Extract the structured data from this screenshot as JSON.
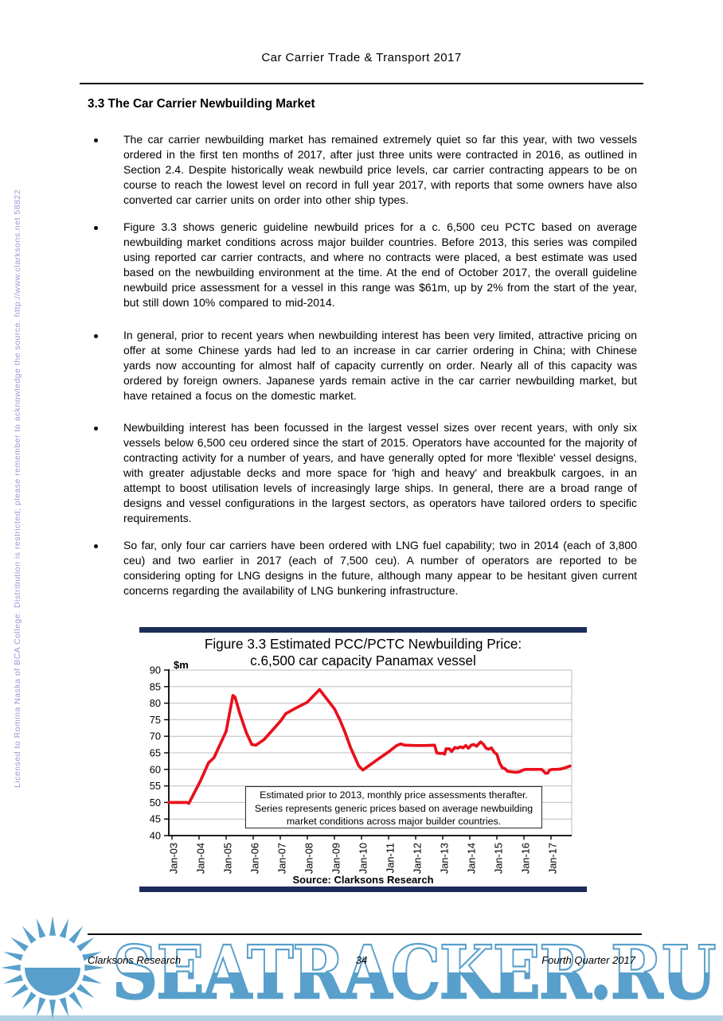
{
  "header": {
    "title": "Car Carrier Trade & Transport 2017"
  },
  "section": {
    "heading": "3.3 The Car Carrier Newbuilding Market"
  },
  "bullets": [
    "The car carrier newbuilding market has remained extremely quiet so far this year, with two vessels ordered in the first ten months of 2017, after just three units were contracted in 2016, as outlined in Section 2.4. Despite historically weak newbuild price levels, car carrier contracting appears to be on course to reach the lowest level on record in full year 2017, with reports that some owners have also converted car carrier units on order into other ship types.",
    "Figure 3.3 shows generic guideline newbuild prices for a c. 6,500 ceu PCTC based on average newbuilding market conditions across major builder countries. Before 2013, this series was compiled using reported car carrier contracts, and where no contracts were placed, a best estimate was used based on the newbuilding environment at the time. At the end of October 2017, the overall guideline newbuild price assessment for a vessel in this range was $61m, up by 2% from the start of the year, but still down 10% compared to mid-2014.",
    "In general, prior to recent years when newbuilding interest has been very limited, attractive pricing on offer at some Chinese yards had led to an increase in car carrier ordering in China; with Chinese yards now accounting for almost half of capacity currently on order. Nearly all of this capacity was ordered by foreign owners. Japanese yards remain active in the car carrier newbuilding market, but have retained a focus on the domestic market.",
    "Newbuilding interest has been focussed in the largest vessel sizes over recent years, with only six vessels below 6,500 ceu ordered since the start of 2015. Operators have accounted for the majority of contracting activity for a number of years, and have generally opted for more 'flexible' vessel designs, with greater adjustable decks and more space for 'high and heavy' and breakbulk cargoes, in an attempt to boost utilisation levels of increasingly large ships. In general, there are a broad range of designs and vessel configurations in the largest sectors, as operators have tailored orders to specific requirements.",
    "So far, only four car carriers have been ordered with LNG fuel capability; two in 2014 (each of 3,800 ceu) and two earlier in 2017 (each of 7,500 ceu). A number of operators are reported to be considering opting for LNG designs in the future, although many appear to be hesitant given current concerns regarding the availability of LNG bunkering infrastructure."
  ],
  "chart_data": {
    "type": "line",
    "title_line1": "Figure 3.3 Estimated PCC/PCTC Newbuilding Price:",
    "title_line2": "c.6,500 car capacity Panamax vessel",
    "unit_label": "$m",
    "ylim": [
      40,
      90
    ],
    "ytick_step": 5,
    "grid": "horizontal",
    "legend": "none",
    "x_categories": [
      "Jan-03",
      "Jan-04",
      "Jan-05",
      "Jan-06",
      "Jan-07",
      "Jan-08",
      "Jan-09",
      "Jan-10",
      "Jan-11",
      "Jan-12",
      "Jan-13",
      "Jan-14",
      "Jan-15",
      "Jan-16",
      "Jan-17"
    ],
    "series": [
      {
        "name": "Estimated PCC/PCTC newbuilding price ($m)",
        "color": "#e8101c",
        "points": [
          [
            2003.0,
            50
          ],
          [
            2003.55,
            50
          ],
          [
            2003.62,
            49.7
          ],
          [
            2004.05,
            56.5
          ],
          [
            2004.35,
            62
          ],
          [
            2004.55,
            63.5
          ],
          [
            2005.0,
            71.5
          ],
          [
            2005.15,
            78
          ],
          [
            2005.25,
            82.3
          ],
          [
            2005.33,
            81.8
          ],
          [
            2005.5,
            77
          ],
          [
            2005.75,
            71
          ],
          [
            2005.95,
            67.5
          ],
          [
            2006.1,
            67.3
          ],
          [
            2006.4,
            69
          ],
          [
            2007.0,
            74.5
          ],
          [
            2007.2,
            76.8
          ],
          [
            2007.5,
            78.2
          ],
          [
            2008.0,
            80.3
          ],
          [
            2008.45,
            84.1
          ],
          [
            2009.0,
            78.3
          ],
          [
            2009.2,
            75
          ],
          [
            2009.4,
            71
          ],
          [
            2009.6,
            66.5
          ],
          [
            2009.9,
            61
          ],
          [
            2010.05,
            59.8
          ],
          [
            2010.6,
            63
          ],
          [
            2011.0,
            65.3
          ],
          [
            2011.3,
            67.2
          ],
          [
            2011.45,
            67.7
          ],
          [
            2011.6,
            67.3
          ],
          [
            2012.0,
            67.2
          ],
          [
            2012.4,
            67.2
          ],
          [
            2012.7,
            67.3
          ],
          [
            2012.78,
            65.0
          ],
          [
            2012.9,
            64.8
          ],
          [
            2013.0,
            64.9
          ],
          [
            2013.07,
            64.6
          ],
          [
            2013.12,
            66.2
          ],
          [
            2013.25,
            66.2
          ],
          [
            2013.33,
            65.4
          ],
          [
            2013.45,
            66.6
          ],
          [
            2013.55,
            66.4
          ],
          [
            2013.65,
            66.8
          ],
          [
            2013.75,
            66.5
          ],
          [
            2013.85,
            67.2
          ],
          [
            2013.95,
            66.4
          ],
          [
            2014.05,
            67.3
          ],
          [
            2014.15,
            67.5
          ],
          [
            2014.25,
            67.0
          ],
          [
            2014.4,
            68.3
          ],
          [
            2014.5,
            67.6
          ],
          [
            2014.6,
            66.4
          ],
          [
            2014.7,
            66.1
          ],
          [
            2014.8,
            66.5
          ],
          [
            2014.9,
            65.2
          ],
          [
            2015.0,
            64.6
          ],
          [
            2015.1,
            62.0
          ],
          [
            2015.2,
            60.5
          ],
          [
            2015.3,
            60.2
          ],
          [
            2015.4,
            59.4
          ],
          [
            2015.5,
            59.3
          ],
          [
            2015.6,
            59.2
          ],
          [
            2015.7,
            59.1
          ],
          [
            2015.85,
            59.3
          ],
          [
            2016.0,
            59.9
          ],
          [
            2016.1,
            60.0
          ],
          [
            2016.3,
            60.0
          ],
          [
            2016.5,
            60.0
          ],
          [
            2016.65,
            60.0
          ],
          [
            2016.72,
            59.5
          ],
          [
            2016.8,
            58.8
          ],
          [
            2016.88,
            58.9
          ],
          [
            2016.95,
            59.8
          ],
          [
            2017.05,
            60.0
          ],
          [
            2017.2,
            60.0
          ],
          [
            2017.35,
            60.1
          ],
          [
            2017.5,
            60.4
          ],
          [
            2017.6,
            60.7
          ],
          [
            2017.7,
            61.0
          ]
        ]
      }
    ],
    "note_box": "Estimated prior to 2013, monthly price assessments therafter. Series represents generic prices based on average newbuilding market conditions across major builder countries.",
    "source_label": "Source: Clarksons Research"
  },
  "footer": {
    "left": "Clarksons Research",
    "page": "34",
    "right": "Fourth Quarter 2017"
  },
  "license": {
    "text": "Licensed to Romina Naska of BCA College. Distribution is restricted; please remember to acknowledge the source. http://www.clarksons.net 58822"
  },
  "watermark": {
    "text": "SEATRACKER.RU",
    "color": "#58a0cb"
  }
}
